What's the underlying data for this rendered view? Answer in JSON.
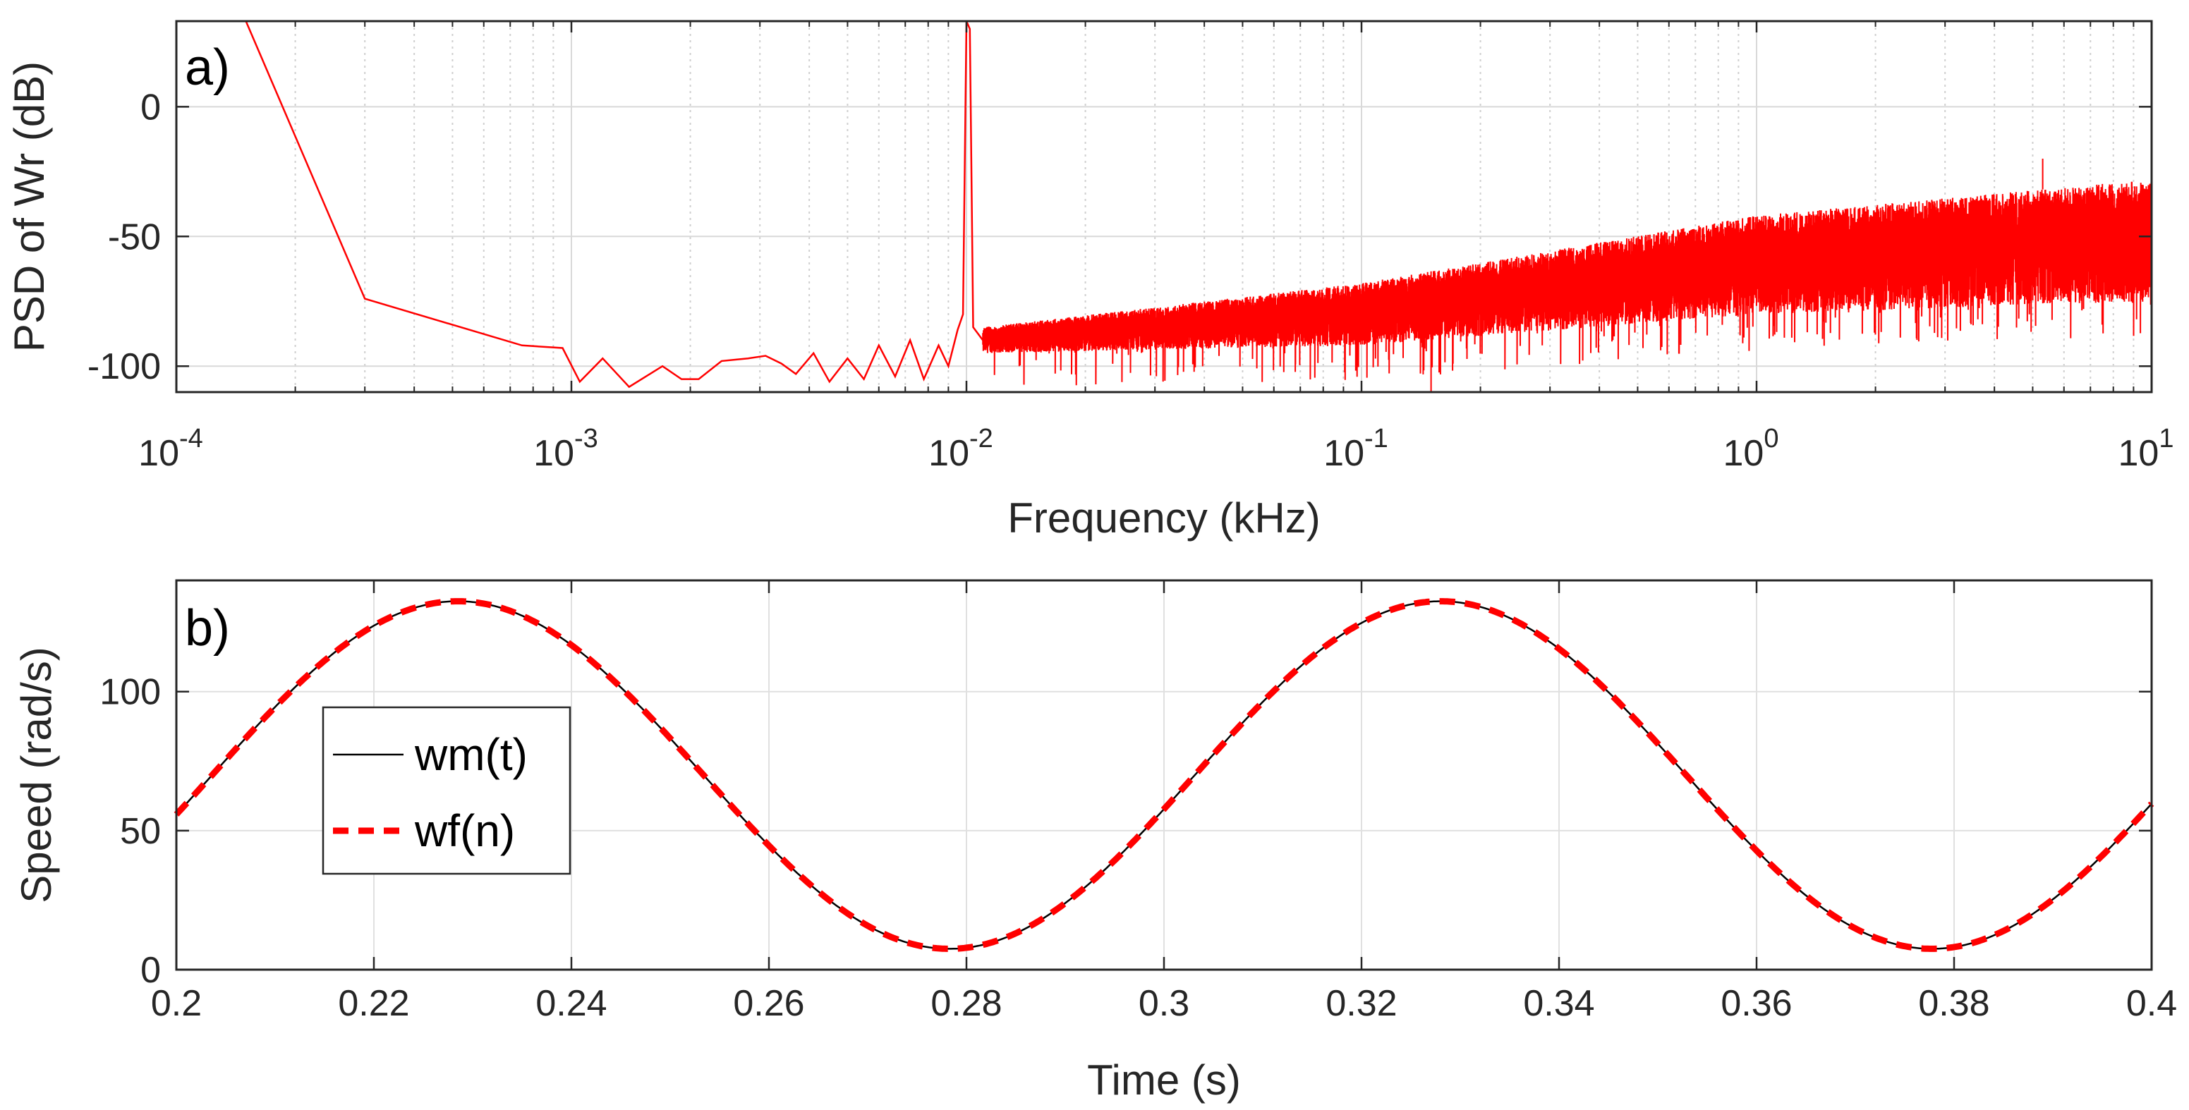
{
  "chart_data": [
    {
      "type": "line",
      "panel_label": "a)",
      "xscale": "log",
      "xlabel": "Frequency (kHz)",
      "ylabel": "PSD of Wr (dB)",
      "xlim": [
        0.0001,
        10
      ],
      "ylim": [
        -110,
        33
      ],
      "grid": true,
      "x_tick_labels": [
        {
          "base": "10",
          "exp": "-4",
          "value": 0.0001
        },
        {
          "base": "10",
          "exp": "-3",
          "value": 0.001
        },
        {
          "base": "10",
          "exp": "-2",
          "value": 0.01
        },
        {
          "base": "10",
          "exp": "-1",
          "value": 0.1
        },
        {
          "base": "10",
          "exp": "0",
          "value": 1
        },
        {
          "base": "10",
          "exp": "1",
          "value": 10
        }
      ],
      "y_ticks": [
        0,
        -50,
        -100
      ],
      "y_tick_labels": [
        "0",
        "-50",
        "-100"
      ],
      "series": [
        {
          "name": "PSD of Wr",
          "color": "#ff0000",
          "low_freq_points": [
            {
              "x": 0.00015,
              "y": 33
            },
            {
              "x": 0.0003,
              "y": -74
            },
            {
              "x": 0.00075,
              "y": -92
            },
            {
              "x": 0.00095,
              "y": -93
            },
            {
              "x": 0.00105,
              "y": -106
            },
            {
              "x": 0.0012,
              "y": -97
            },
            {
              "x": 0.0014,
              "y": -108
            },
            {
              "x": 0.0017,
              "y": -100
            },
            {
              "x": 0.0019,
              "y": -105
            },
            {
              "x": 0.0021,
              "y": -105
            },
            {
              "x": 0.0024,
              "y": -98
            },
            {
              "x": 0.0028,
              "y": -97
            },
            {
              "x": 0.0031,
              "y": -96
            },
            {
              "x": 0.0034,
              "y": -99
            },
            {
              "x": 0.0037,
              "y": -103
            },
            {
              "x": 0.0041,
              "y": -95
            },
            {
              "x": 0.0045,
              "y": -106
            },
            {
              "x": 0.005,
              "y": -97
            },
            {
              "x": 0.0055,
              "y": -105
            },
            {
              "x": 0.006,
              "y": -92
            },
            {
              "x": 0.0066,
              "y": -104
            },
            {
              "x": 0.0072,
              "y": -90
            },
            {
              "x": 0.0078,
              "y": -105
            },
            {
              "x": 0.0085,
              "y": -92
            },
            {
              "x": 0.009,
              "y": -100
            },
            {
              "x": 0.0095,
              "y": -86
            },
            {
              "x": 0.0098,
              "y": -80
            },
            {
              "x": 0.01,
              "y": 33
            },
            {
              "x": 0.0102,
              "y": 30
            },
            {
              "x": 0.0104,
              "y": -85
            },
            {
              "x": 0.011,
              "y": -90
            }
          ],
          "noise_trend": [
            {
              "x": 0.011,
              "y_top": -85,
              "y_bottom": -95
            },
            {
              "x": 0.1,
              "y_top": -68,
              "y_bottom": -92
            },
            {
              "x": 1,
              "y_top": -42,
              "y_bottom": -80
            },
            {
              "x": 10,
              "y_top": -28,
              "y_bottom": -75
            }
          ],
          "notable_points": [
            {
              "x": 0.15,
              "y": -110
            },
            {
              "x": 5.3,
              "y": -20
            }
          ]
        }
      ]
    },
    {
      "type": "line",
      "panel_label": "b)",
      "xlabel": "Time (s)",
      "ylabel": "Speed (rad/s)",
      "xlim": [
        0.2,
        0.4
      ],
      "ylim": [
        0,
        140
      ],
      "grid": true,
      "x_ticks": [
        0.2,
        0.22,
        0.24,
        0.26,
        0.28,
        0.3,
        0.32,
        0.34,
        0.36,
        0.38,
        0.4
      ],
      "x_tick_labels": [
        "0.2",
        "0.22",
        "0.24",
        "0.26",
        "0.28",
        "0.3",
        "0.32",
        "0.34",
        "0.36",
        "0.38",
        "0.4"
      ],
      "y_ticks": [
        0,
        50,
        100
      ],
      "y_tick_labels": [
        "0",
        "50",
        "100"
      ],
      "legend_location": "center-left",
      "signal": {
        "mean": 70,
        "amplitude": 62.5,
        "period_s": 0.0995,
        "peak_time_s": 0.2285
      },
      "series": [
        {
          "name": "wm(t)",
          "color": "#000000",
          "style": "solid"
        },
        {
          "name": "wf(n)",
          "color": "#ff0000",
          "style": "dashed"
        }
      ],
      "key_points": [
        {
          "x": 0.2,
          "y": 57
        },
        {
          "x": 0.2285,
          "y": 132.5
        },
        {
          "x": 0.278,
          "y": 8
        },
        {
          "x": 0.3275,
          "y": 132.5
        },
        {
          "x": 0.377,
          "y": 8
        },
        {
          "x": 0.4,
          "y": 62
        }
      ]
    }
  ]
}
